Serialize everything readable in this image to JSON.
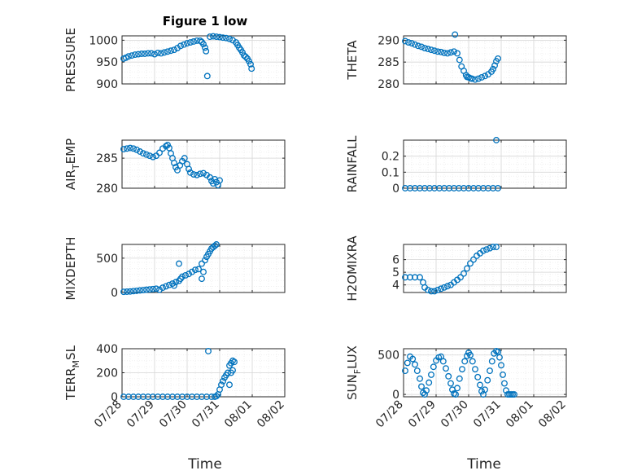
{
  "figure": {
    "title": "Figure 1 low",
    "xlabel": "Time",
    "x_ticks": [
      "07/28",
      "07/29",
      "07/30",
      "07/31",
      "08/01",
      "08/02"
    ]
  },
  "chart_data": [
    {
      "type": "scatter",
      "panel": "top-left",
      "ylabel": "PRESSURE",
      "color": "#0072BD",
      "ylim": [
        900,
        1010
      ],
      "yticks": [
        900,
        950,
        1000
      ],
      "xlim": [
        0,
        5
      ],
      "grid": true,
      "points": [
        [
          0.05,
          958
        ],
        [
          0.12,
          960
        ],
        [
          0.2,
          963
        ],
        [
          0.3,
          965
        ],
        [
          0.4,
          967
        ],
        [
          0.5,
          968
        ],
        [
          0.6,
          969
        ],
        [
          0.7,
          969
        ],
        [
          0.8,
          970
        ],
        [
          0.9,
          970
        ],
        [
          1.0,
          968
        ],
        [
          1.1,
          971
        ],
        [
          1.2,
          970
        ],
        [
          1.3,
          972
        ],
        [
          1.4,
          974
        ],
        [
          1.5,
          976
        ],
        [
          1.6,
          978
        ],
        [
          1.7,
          982
        ],
        [
          1.8,
          987
        ],
        [
          1.9,
          990
        ],
        [
          2.0,
          993
        ],
        [
          2.1,
          995
        ],
        [
          2.2,
          997
        ],
        [
          2.3,
          999
        ],
        [
          2.4,
          999
        ],
        [
          2.45,
          996
        ],
        [
          2.5,
          991
        ],
        [
          2.55,
          983
        ],
        [
          2.58,
          975
        ],
        [
          2.62,
          918
        ],
        [
          2.7,
          1008
        ],
        [
          2.8,
          1009
        ],
        [
          2.9,
          1008
        ],
        [
          3.0,
          1007
        ],
        [
          3.1,
          1006
        ],
        [
          3.2,
          1005
        ],
        [
          3.3,
          1003
        ],
        [
          3.4,
          1000
        ],
        [
          3.5,
          995
        ],
        [
          3.55,
          989
        ],
        [
          3.6,
          983
        ],
        [
          3.65,
          978
        ],
        [
          3.7,
          972
        ],
        [
          3.75,
          965
        ],
        [
          3.8,
          962
        ],
        [
          3.85,
          958
        ],
        [
          3.9,
          952
        ],
        [
          3.95,
          945
        ],
        [
          3.98,
          935
        ]
      ]
    },
    {
      "type": "scatter",
      "panel": "top-right",
      "ylabel": "THETA",
      "color": "#0072BD",
      "ylim": [
        280,
        291
      ],
      "yticks": [
        280,
        285,
        290
      ],
      "xlim": [
        0,
        5
      ],
      "grid": true,
      "points": [
        [
          0.05,
          289.8
        ],
        [
          0.15,
          289.5
        ],
        [
          0.25,
          289.3
        ],
        [
          0.35,
          289
        ],
        [
          0.45,
          288.7
        ],
        [
          0.55,
          288.5
        ],
        [
          0.65,
          288.2
        ],
        [
          0.75,
          288
        ],
        [
          0.85,
          287.8
        ],
        [
          0.95,
          287.6
        ],
        [
          1.05,
          287.4
        ],
        [
          1.15,
          287.3
        ],
        [
          1.25,
          287.1
        ],
        [
          1.35,
          287
        ],
        [
          1.45,
          287.2
        ],
        [
          1.55,
          287.4
        ],
        [
          1.65,
          287
        ],
        [
          1.72,
          285.5
        ],
        [
          1.78,
          284
        ],
        [
          1.85,
          283
        ],
        [
          1.92,
          282
        ],
        [
          2.0,
          281.5
        ],
        [
          2.1,
          281.2
        ],
        [
          2.2,
          281
        ],
        [
          2.3,
          281.2
        ],
        [
          2.4,
          281.5
        ],
        [
          2.5,
          281.8
        ],
        [
          2.6,
          282.2
        ],
        [
          2.7,
          282.8
        ],
        [
          2.75,
          283.4
        ],
        [
          2.8,
          284.2
        ],
        [
          2.85,
          285.2
        ],
        [
          2.9,
          285.8
        ],
        [
          1.58,
          291.3
        ],
        [
          1.95,
          281.6
        ],
        [
          2.05,
          281.3
        ]
      ]
    },
    {
      "type": "scatter",
      "panel": "row2-left",
      "ylabel": "AIR_TEMP",
      "color": "#0072BD",
      "ylim": [
        280,
        288
      ],
      "yticks": [
        280,
        285
      ],
      "xlim": [
        0,
        5
      ],
      "grid": true,
      "points": [
        [
          0.05,
          286.5
        ],
        [
          0.15,
          286.6
        ],
        [
          0.25,
          286.7
        ],
        [
          0.35,
          286.6
        ],
        [
          0.45,
          286.4
        ],
        [
          0.55,
          286.1
        ],
        [
          0.65,
          285.8
        ],
        [
          0.75,
          285.6
        ],
        [
          0.85,
          285.4
        ],
        [
          0.95,
          285.2
        ],
        [
          1.05,
          285.4
        ],
        [
          1.15,
          285.9
        ],
        [
          1.25,
          286.6
        ],
        [
          1.35,
          287
        ],
        [
          1.4,
          287.2
        ],
        [
          1.45,
          286.7
        ],
        [
          1.5,
          285.8
        ],
        [
          1.55,
          285
        ],
        [
          1.6,
          284.2
        ],
        [
          1.65,
          283.5
        ],
        [
          1.7,
          283
        ],
        [
          1.78,
          283.8
        ],
        [
          1.85,
          284.5
        ],
        [
          1.92,
          285
        ],
        [
          2.0,
          284
        ],
        [
          2.05,
          283.2
        ],
        [
          2.1,
          282.6
        ],
        [
          2.2,
          282.3
        ],
        [
          2.3,
          282.2
        ],
        [
          2.4,
          282.4
        ],
        [
          2.5,
          282.5
        ],
        [
          2.6,
          282.2
        ],
        [
          2.7,
          281.8
        ],
        [
          2.75,
          281.2
        ],
        [
          2.8,
          280.8
        ],
        [
          2.85,
          281.5
        ],
        [
          2.9,
          281
        ],
        [
          2.95,
          280.5
        ],
        [
          3.0,
          281.3
        ]
      ]
    },
    {
      "type": "scatter",
      "panel": "row2-right",
      "ylabel": "RAINFALL",
      "color": "#0072BD",
      "ylim": [
        0,
        0.3
      ],
      "yticks": [
        0,
        0.1,
        0.2
      ],
      "xlim": [
        0,
        5
      ],
      "grid": true,
      "points": [
        [
          0.05,
          0
        ],
        [
          0.2,
          0
        ],
        [
          0.35,
          0
        ],
        [
          0.5,
          0
        ],
        [
          0.65,
          0
        ],
        [
          0.8,
          0
        ],
        [
          0.95,
          0
        ],
        [
          1.1,
          0
        ],
        [
          1.25,
          0
        ],
        [
          1.4,
          0
        ],
        [
          1.55,
          0
        ],
        [
          1.7,
          0
        ],
        [
          1.85,
          0
        ],
        [
          2.0,
          0
        ],
        [
          2.15,
          0
        ],
        [
          2.3,
          0
        ],
        [
          2.45,
          0
        ],
        [
          2.6,
          0
        ],
        [
          2.75,
          0
        ],
        [
          2.9,
          0
        ],
        [
          2.85,
          0.3
        ]
      ]
    },
    {
      "type": "scatter",
      "panel": "row3-left",
      "ylabel": "MIXDEPTH",
      "color": "#0072BD",
      "ylim": [
        0,
        700
      ],
      "yticks": [
        0,
        500
      ],
      "xlim": [
        0,
        5
      ],
      "grid": true,
      "points": [
        [
          0.05,
          10
        ],
        [
          0.15,
          12
        ],
        [
          0.25,
          15
        ],
        [
          0.35,
          20
        ],
        [
          0.45,
          25
        ],
        [
          0.55,
          30
        ],
        [
          0.65,
          35
        ],
        [
          0.75,
          40
        ],
        [
          0.85,
          45
        ],
        [
          0.95,
          50
        ],
        [
          1.05,
          55
        ],
        [
          1.15,
          40
        ],
        [
          1.25,
          70
        ],
        [
          1.35,
          90
        ],
        [
          1.45,
          110
        ],
        [
          1.55,
          130
        ],
        [
          1.65,
          150
        ],
        [
          1.75,
          170
        ],
        [
          1.8,
          200
        ],
        [
          1.85,
          230
        ],
        [
          1.95,
          250
        ],
        [
          2.05,
          270
        ],
        [
          2.15,
          300
        ],
        [
          2.25,
          330
        ],
        [
          2.35,
          340
        ],
        [
          2.45,
          420
        ],
        [
          2.55,
          470
        ],
        [
          2.6,
          520
        ],
        [
          2.65,
          560
        ],
        [
          2.7,
          600
        ],
        [
          2.75,
          640
        ],
        [
          2.8,
          660
        ],
        [
          2.85,
          680
        ],
        [
          2.9,
          700
        ],
        [
          2.45,
          200
        ],
        [
          2.5,
          300
        ],
        [
          1.75,
          420
        ],
        [
          1.6,
          100
        ]
      ]
    },
    {
      "type": "scatter",
      "panel": "row3-right",
      "ylabel": "H2OMIXRA",
      "color": "#0072BD",
      "ylim": [
        3.4,
        7.2
      ],
      "yticks": [
        4,
        5,
        6
      ],
      "xlim": [
        0,
        5
      ],
      "grid": true,
      "points": [
        [
          0.05,
          4.6
        ],
        [
          0.2,
          4.6
        ],
        [
          0.35,
          4.6
        ],
        [
          0.5,
          4.6
        ],
        [
          0.6,
          4.2
        ],
        [
          0.65,
          3.8
        ],
        [
          0.75,
          3.6
        ],
        [
          0.85,
          3.5
        ],
        [
          0.95,
          3.5
        ],
        [
          1.05,
          3.6
        ],
        [
          1.15,
          3.7
        ],
        [
          1.25,
          3.8
        ],
        [
          1.35,
          3.9
        ],
        [
          1.45,
          4.0
        ],
        [
          1.55,
          4.2
        ],
        [
          1.65,
          4.4
        ],
        [
          1.75,
          4.6
        ],
        [
          1.85,
          4.9
        ],
        [
          1.95,
          5.3
        ],
        [
          2.05,
          5.7
        ],
        [
          2.15,
          6.0
        ],
        [
          2.25,
          6.3
        ],
        [
          2.35,
          6.5
        ],
        [
          2.45,
          6.7
        ],
        [
          2.55,
          6.8
        ],
        [
          2.65,
          6.9
        ],
        [
          2.75,
          7.0
        ],
        [
          2.85,
          7.0
        ]
      ]
    },
    {
      "type": "scatter",
      "panel": "bottom-left",
      "ylabel": "TERR_MSL",
      "color": "#0072BD",
      "ylim": [
        0,
        400
      ],
      "yticks": [
        0,
        200,
        400
      ],
      "xlim": [
        0,
        5
      ],
      "grid": true,
      "points": [
        [
          0.05,
          0
        ],
        [
          0.2,
          0
        ],
        [
          0.35,
          0
        ],
        [
          0.5,
          0
        ],
        [
          0.65,
          0
        ],
        [
          0.8,
          0
        ],
        [
          0.95,
          0
        ],
        [
          1.1,
          0
        ],
        [
          1.25,
          0
        ],
        [
          1.4,
          0
        ],
        [
          1.55,
          0
        ],
        [
          1.7,
          0
        ],
        [
          1.85,
          0
        ],
        [
          2.0,
          0
        ],
        [
          2.15,
          0
        ],
        [
          2.3,
          0
        ],
        [
          2.45,
          0
        ],
        [
          2.6,
          0
        ],
        [
          2.75,
          0
        ],
        [
          2.85,
          0
        ],
        [
          2.9,
          5
        ],
        [
          2.95,
          20
        ],
        [
          3.0,
          60
        ],
        [
          3.05,
          100
        ],
        [
          3.1,
          130
        ],
        [
          3.15,
          160
        ],
        [
          3.2,
          180
        ],
        [
          3.25,
          200
        ],
        [
          3.3,
          260
        ],
        [
          3.35,
          280
        ],
        [
          3.4,
          300
        ],
        [
          3.45,
          290
        ],
        [
          2.65,
          380
        ],
        [
          3.3,
          100
        ],
        [
          3.35,
          200
        ],
        [
          3.4,
          220
        ]
      ]
    },
    {
      "type": "scatter",
      "panel": "bottom-right",
      "ylabel": "SUN_FLUX",
      "color": "#0072BD",
      "ylim": [
        -30,
        580
      ],
      "yticks": [
        0,
        500
      ],
      "xlim": [
        0,
        5
      ],
      "grid": true,
      "points": [
        [
          0.05,
          300
        ],
        [
          0.12,
          400
        ],
        [
          0.2,
          480
        ],
        [
          0.28,
          450
        ],
        [
          0.35,
          380
        ],
        [
          0.42,
          300
        ],
        [
          0.5,
          200
        ],
        [
          0.55,
          100
        ],
        [
          0.6,
          20
        ],
        [
          0.65,
          0
        ],
        [
          0.7,
          50
        ],
        [
          0.78,
          150
        ],
        [
          0.85,
          250
        ],
        [
          0.92,
          350
        ],
        [
          1.0,
          430
        ],
        [
          1.08,
          470
        ],
        [
          1.15,
          480
        ],
        [
          1.22,
          420
        ],
        [
          1.3,
          330
        ],
        [
          1.38,
          230
        ],
        [
          1.45,
          140
        ],
        [
          1.5,
          60
        ],
        [
          1.55,
          10
        ],
        [
          1.6,
          0
        ],
        [
          1.65,
          80
        ],
        [
          1.72,
          200
        ],
        [
          1.8,
          320
        ],
        [
          1.88,
          420
        ],
        [
          1.95,
          490
        ],
        [
          2.0,
          530
        ],
        [
          2.05,
          500
        ],
        [
          2.12,
          420
        ],
        [
          2.2,
          320
        ],
        [
          2.28,
          220
        ],
        [
          2.35,
          120
        ],
        [
          2.4,
          40
        ],
        [
          2.45,
          0
        ],
        [
          2.5,
          60
        ],
        [
          2.58,
          180
        ],
        [
          2.65,
          300
        ],
        [
          2.72,
          420
        ],
        [
          2.78,
          520
        ],
        [
          2.85,
          550
        ],
        [
          2.9,
          540
        ],
        [
          2.95,
          470
        ],
        [
          3.0,
          370
        ],
        [
          3.05,
          250
        ],
        [
          3.1,
          140
        ],
        [
          3.15,
          50
        ],
        [
          3.2,
          0
        ],
        [
          3.25,
          0
        ],
        [
          3.3,
          0
        ],
        [
          3.35,
          0
        ],
        [
          3.4,
          0
        ]
      ]
    }
  ]
}
